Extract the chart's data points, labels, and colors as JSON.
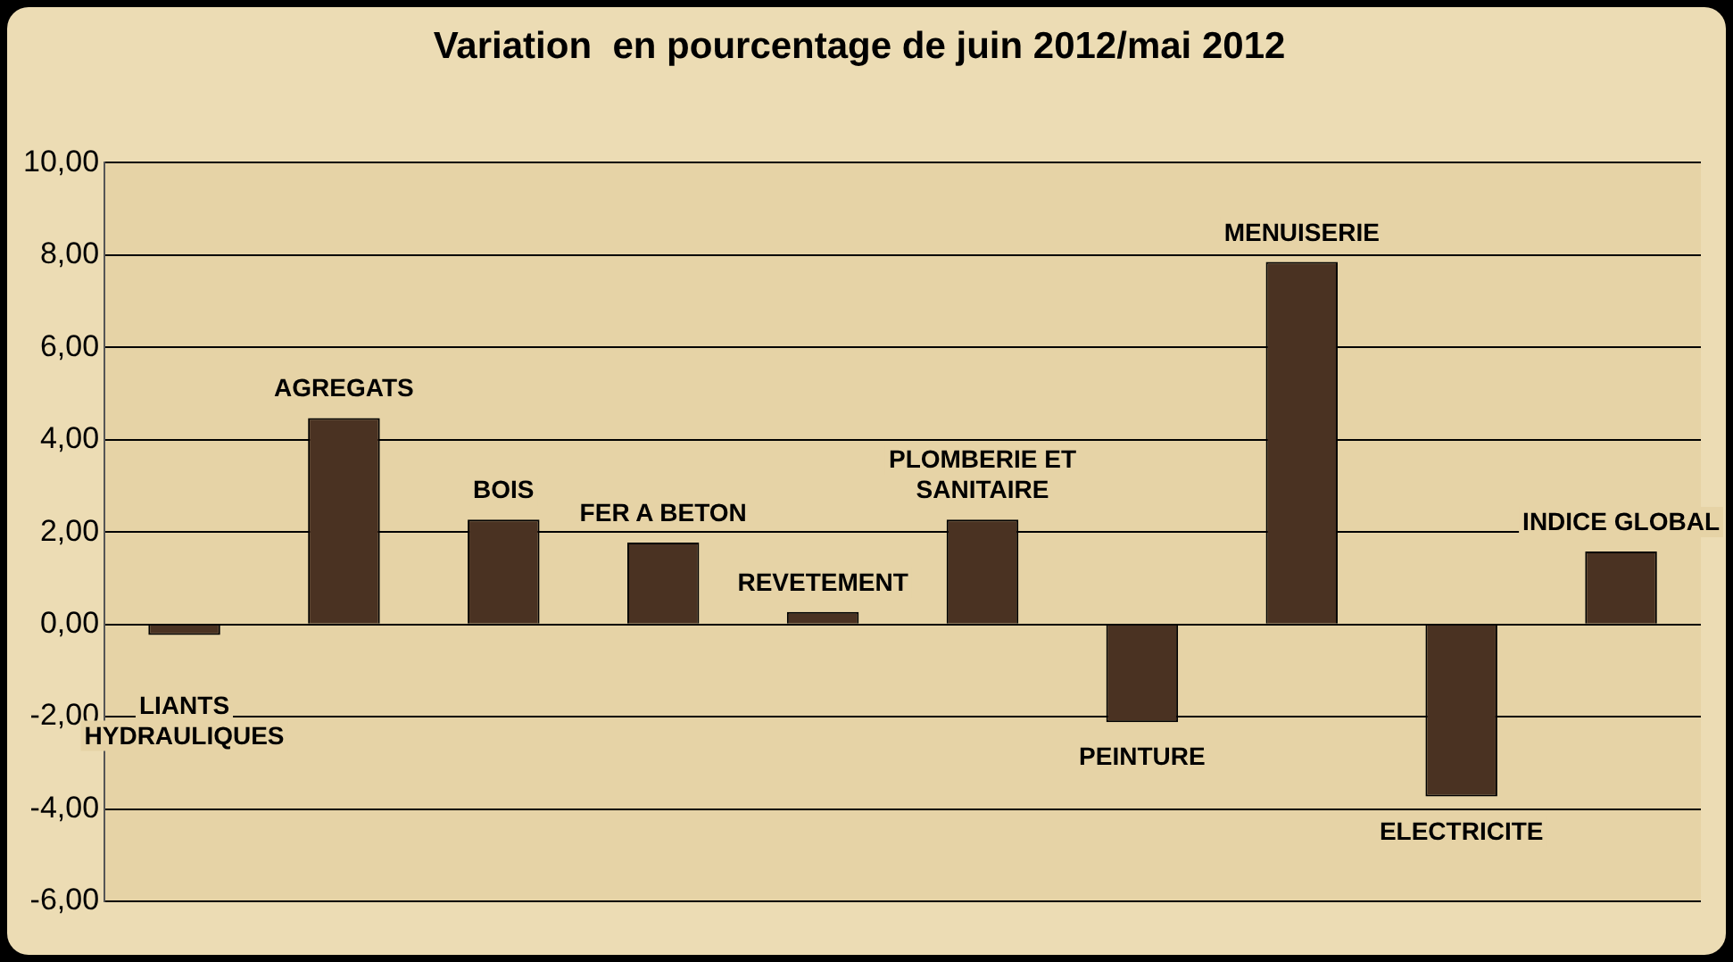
{
  "chart_data": {
    "type": "bar",
    "title": "Variation  en pourcentage de juin 2012/mai 2012",
    "categories": [
      "LIANTS HYDRAULIQUES",
      "AGREGATS",
      "BOIS",
      "FER A BETON",
      "REVETEMENT",
      "PLOMBERIE ET SANITAIRE",
      "PEINTURE",
      "MENUISERIE",
      "ELECTRICITE",
      "INDICE GLOBAL"
    ],
    "values": [
      -0.23,
      4.47,
      2.27,
      1.77,
      0.27,
      2.27,
      -2.12,
      7.85,
      -3.73,
      1.58
    ],
    "color": "#4a3222",
    "ylim": [
      -6,
      10
    ],
    "yticks": [
      {
        "value": -6,
        "label": "-6,00"
      },
      {
        "value": -4,
        "label": "-4,00"
      },
      {
        "value": -2,
        "label": "-2,00"
      },
      {
        "value": 0,
        "label": "0,00"
      },
      {
        "value": 2,
        "label": "2,00"
      },
      {
        "value": 4,
        "label": "4,00"
      },
      {
        "value": 6,
        "label": "6,00"
      },
      {
        "value": 8,
        "label": "8,00"
      },
      {
        "value": 10,
        "label": "10,00"
      }
    ],
    "grid": "y",
    "legend": false,
    "tick_labels": "y"
  }
}
